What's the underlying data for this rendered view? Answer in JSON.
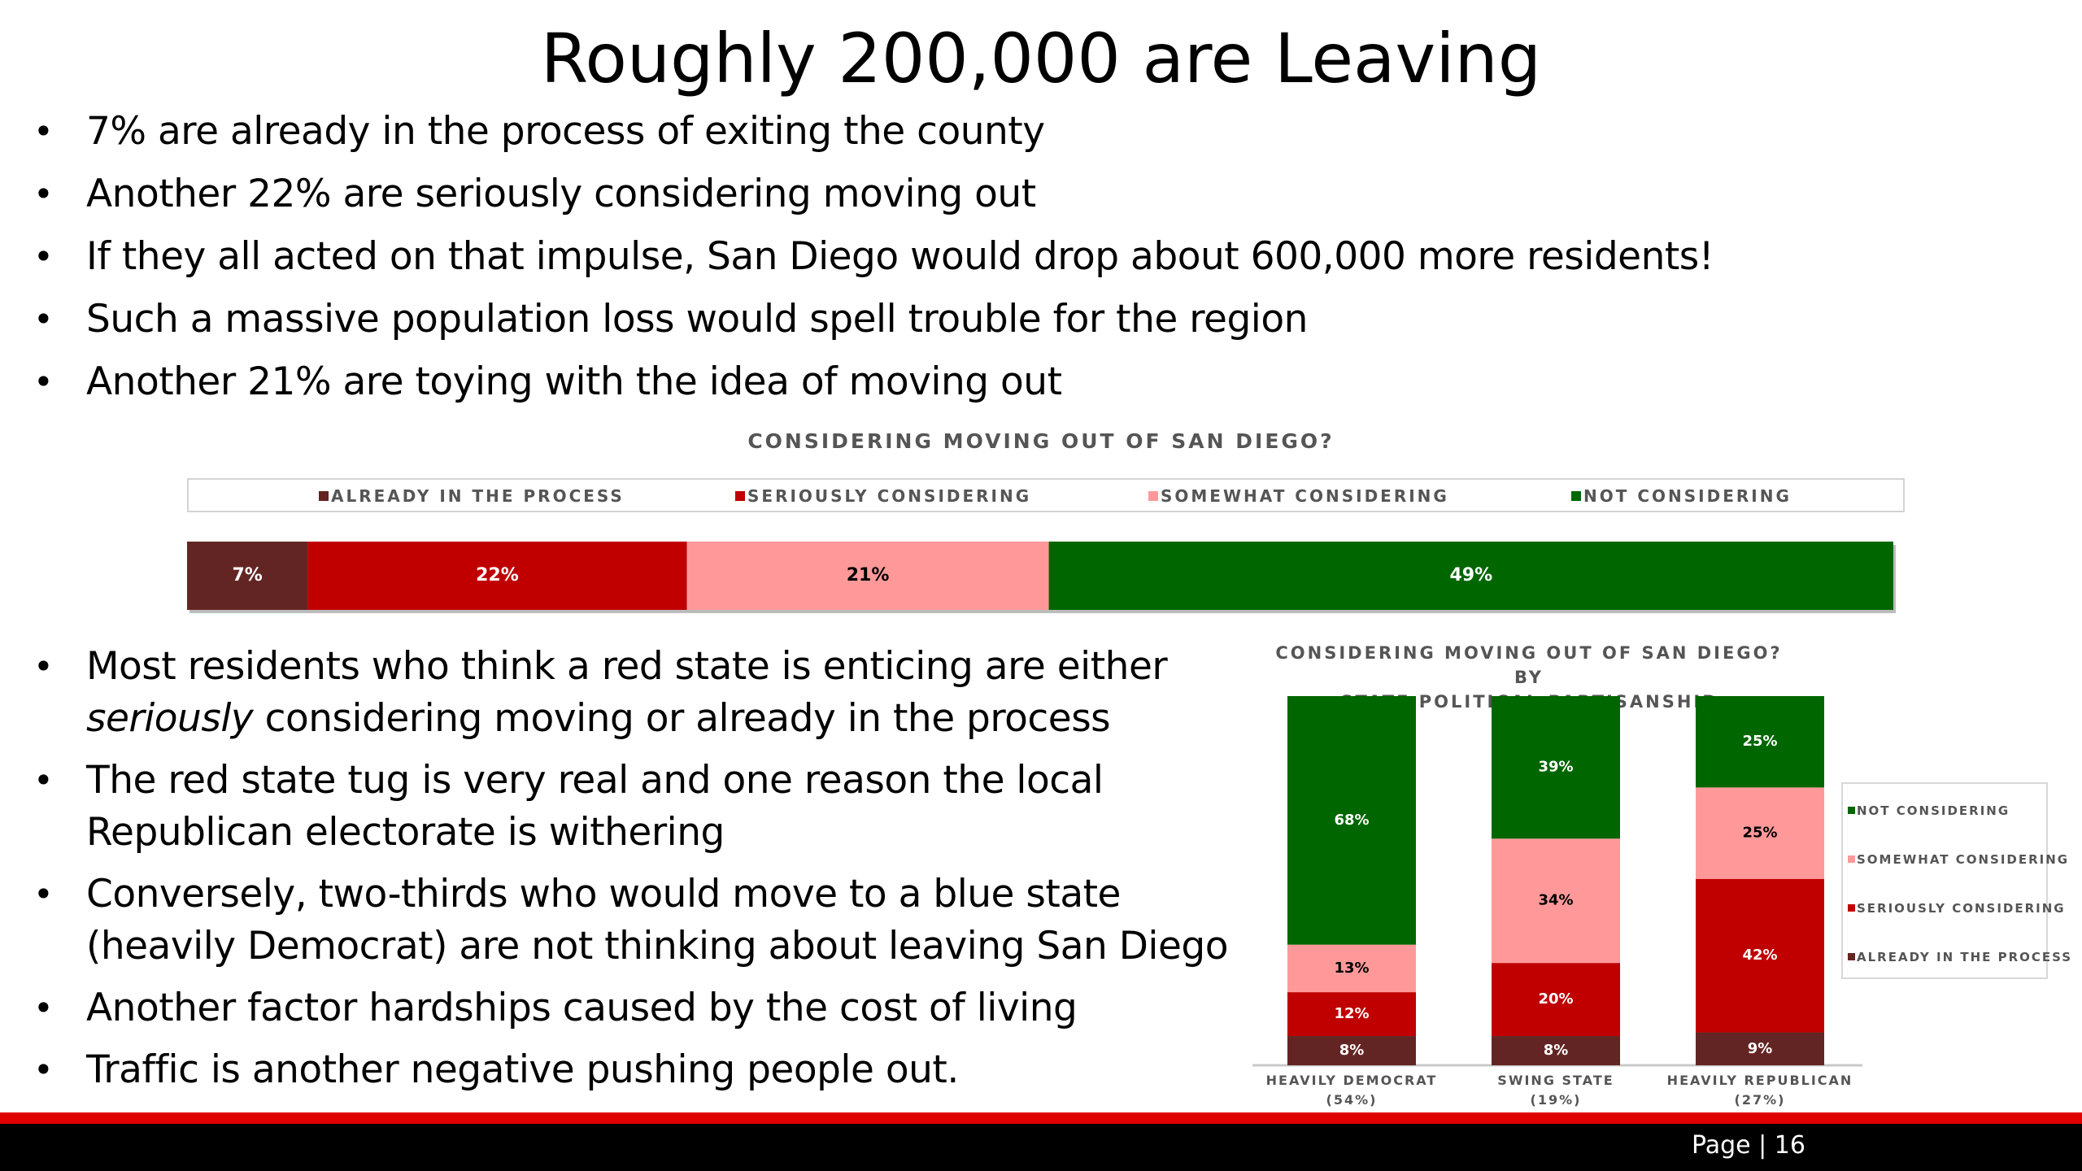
{
  "slide": {
    "title": "Roughly 200,000 are Leaving",
    "bullets_top": [
      "7% are already in the process of exiting the county",
      "Another 22% are seriously considering moving out",
      "If they all acted on that impulse, San Diego would drop about 600,000 more residents!",
      "Such a massive population loss would spell trouble for the region",
      "Another 21% are toying with the idea of moving out"
    ],
    "bullets_bottom": {
      "b1_pre": "Most residents who think a red state is enticing are either ",
      "b1_em": "seriously",
      "b1_post": " considering moving or already in the process",
      "b2": "The red state tug is very real and one reason the local Republican electorate is withering",
      "b3": "Conversely, two-thirds who would move to a blue state (heavily Democrat) are not thinking about leaving San Diego",
      "b4": "Another factor hardships caused by the cost of living",
      "b5": "Traffic is another negative pushing people out."
    },
    "bullet_char": "•",
    "page": "Page | 16"
  },
  "colors": {
    "already": "#632523",
    "seriously": "#c00000",
    "somewhat": "#ff9999",
    "not": "#006600"
  },
  "chart_data": [
    {
      "type": "bar",
      "orientation": "horizontal",
      "stacked": true,
      "title": "CONSIDERING MOVING OUT OF SAN DIEGO?",
      "legend_position": "top",
      "legend": [
        "ALREADY IN THE PROCESS",
        "SERIOUSLY CONSIDERING",
        "SOMEWHAT CONSIDERING",
        "NOT CONSIDERING"
      ],
      "series": [
        {
          "name": "ALREADY IN THE PROCESS",
          "values": [
            7
          ],
          "label": "7%"
        },
        {
          "name": "SERIOUSLY CONSIDERING",
          "values": [
            22
          ],
          "label": "22%"
        },
        {
          "name": "SOMEWHAT CONSIDERING",
          "values": [
            21
          ],
          "label": "21%"
        },
        {
          "name": "NOT CONSIDERING",
          "values": [
            49
          ],
          "label": "49%"
        }
      ]
    },
    {
      "type": "bar",
      "orientation": "vertical",
      "stacked": true,
      "title": "CONSIDERING MOVING OUT OF SAN DIEGO? BY STATE POLITICAL PARTISANSHIP",
      "title_lines": [
        "CONSIDERING MOVING OUT OF SAN DIEGO? BY",
        "STATE POLITICAL PARTISANSHIP"
      ],
      "legend_position": "right",
      "legend": [
        "NOT CONSIDERING",
        "SOMEWHAT CONSIDERING",
        "SERIOUSLY CONSIDERING",
        "ALREADY IN THE PROCESS"
      ],
      "categories": [
        {
          "label": "HEAVILY DEMOCRAT",
          "sub": "(54%)"
        },
        {
          "label": "SWING STATE",
          "sub": "(19%)"
        },
        {
          "label": "HEAVILY REPUBLICAN",
          "sub": "(27%)"
        }
      ],
      "series": [
        {
          "name": "ALREADY IN THE PROCESS",
          "values": [
            8,
            8,
            9
          ]
        },
        {
          "name": "SERIOUSLY CONSIDERING",
          "values": [
            12,
            20,
            42
          ]
        },
        {
          "name": "SOMEWHAT CONSIDERING",
          "values": [
            13,
            34,
            25
          ]
        },
        {
          "name": "NOT CONSIDERING",
          "values": [
            68,
            39,
            25
          ]
        }
      ]
    }
  ]
}
